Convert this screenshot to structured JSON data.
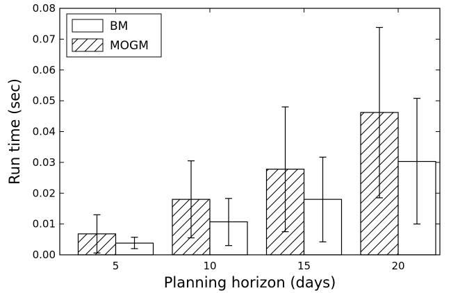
{
  "chart_data": {
    "type": "bar",
    "xlabel": "Planning horizon (days)",
    "ylabel": "Run time (sec)",
    "categories": [
      "5",
      "10",
      "15",
      "20"
    ],
    "ylim": [
      0,
      0.08
    ],
    "yticks": [
      "0.00",
      "0.01",
      "0.02",
      "0.03",
      "0.04",
      "0.05",
      "0.06",
      "0.07",
      "0.08"
    ],
    "legend_position": "top-left",
    "series": [
      {
        "name": "MOGM",
        "style": "hatched",
        "values": [
          0.0068,
          0.018,
          0.0278,
          0.0462
        ],
        "error_low": [
          0.0006,
          0.0055,
          0.0075,
          0.0185
        ],
        "error_high": [
          0.013,
          0.0305,
          0.048,
          0.0738
        ]
      },
      {
        "name": "BM",
        "style": "plain",
        "values": [
          0.0038,
          0.0107,
          0.018,
          0.0303
        ],
        "error_low": [
          0.002,
          0.003,
          0.0042,
          0.01
        ],
        "error_high": [
          0.0057,
          0.0183,
          0.0317,
          0.0508
        ]
      }
    ],
    "legend_order": [
      "BM",
      "MOGM"
    ],
    "grid": false,
    "colors": {
      "bar_fill": "#ffffff",
      "stroke": "#000000"
    }
  }
}
